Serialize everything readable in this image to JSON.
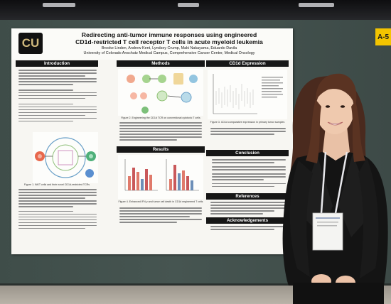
{
  "booth_sign": "A-5",
  "poster": {
    "logo_text": "CU",
    "title_line1": "Redirecting anti-tumor immune responses using engineered",
    "title_line2": "CD1d-restricted T cell receptor T cells in acute myeloid leukemia",
    "authors": "Brooke Linden, Andrew Kent, Lyndsey Crump, Maki Nakayama, Eduardo Davila",
    "affiliation": "University of Colorado Anschutz Medical Campus, Comprehensive Cancer Center, Medical Oncology",
    "sections": {
      "introduction": "Introduction",
      "methods": "Methods",
      "cd1d_expression": "CD1d Expression",
      "results": "Results",
      "conclusion": "Conclusion",
      "references": "References",
      "acknowledgements": "Acknowledgements"
    },
    "captions": {
      "fig1": "Figure 1. iNKT cells and their novel CD1d-restricted TCRs",
      "fig2": "Figure 2. Engineering the CD1d TCR on conventional cytotoxic T cells",
      "fig3": "Figure 3. CD1d comparative expression in primary tumor samples",
      "fig4": "Figure 4. Enhanced IFN-γ and tumor cell death in CD1d engineered T cells"
    }
  },
  "colors": {
    "wall": "#435250",
    "poster_header_bar": "#161616",
    "logo_gold": "#cfb87c",
    "booth_sign": "#f3c400"
  }
}
